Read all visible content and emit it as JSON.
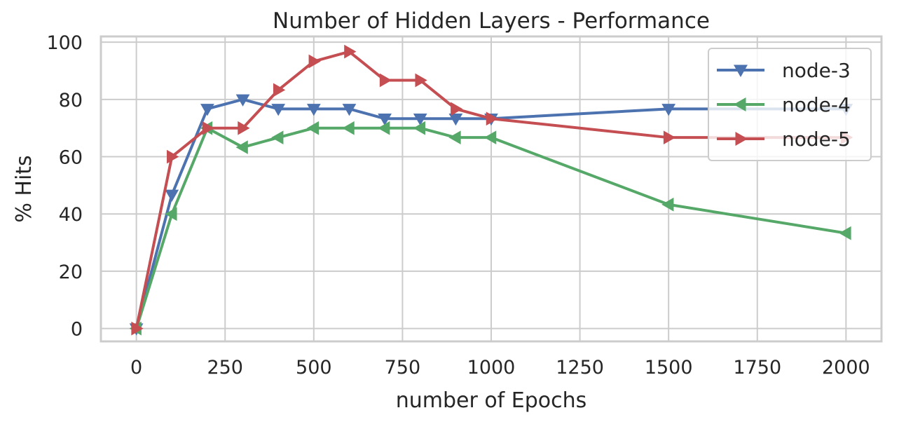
{
  "chart_data": {
    "type": "line",
    "title": "Number of Hidden Layers - Performance",
    "xlabel": "number of Epochs",
    "ylabel": "% Hits",
    "xlim": [
      -100,
      2100
    ],
    "ylim": [
      -4.5,
      102
    ],
    "xticks": [
      0,
      250,
      500,
      750,
      1000,
      1250,
      1500,
      1750,
      2000
    ],
    "yticks": [
      0,
      20,
      40,
      60,
      80,
      100
    ],
    "grid": true,
    "legend_position": "top-right",
    "x": [
      0,
      100,
      200,
      300,
      400,
      500,
      600,
      700,
      800,
      900,
      1000,
      1500,
      2000
    ],
    "series": [
      {
        "name": "node-3",
        "color": "#4c72b0",
        "marker": "triangle-down",
        "values": [
          0,
          46.7,
          76.7,
          80,
          76.7,
          76.7,
          76.7,
          73.3,
          73.3,
          73.3,
          73.3,
          76.7,
          76.7
        ]
      },
      {
        "name": "node-4",
        "color": "#55a868",
        "marker": "triangle-left",
        "values": [
          0,
          40,
          70,
          63.3,
          66.7,
          70,
          70,
          70,
          70,
          66.7,
          66.7,
          43.3,
          33.3
        ]
      },
      {
        "name": "node-5",
        "color": "#c44e52",
        "marker": "triangle-right",
        "values": [
          0,
          60,
          70,
          70,
          83.3,
          93.3,
          96.7,
          86.7,
          86.7,
          76.7,
          73.3,
          66.7,
          66.7
        ]
      }
    ]
  }
}
